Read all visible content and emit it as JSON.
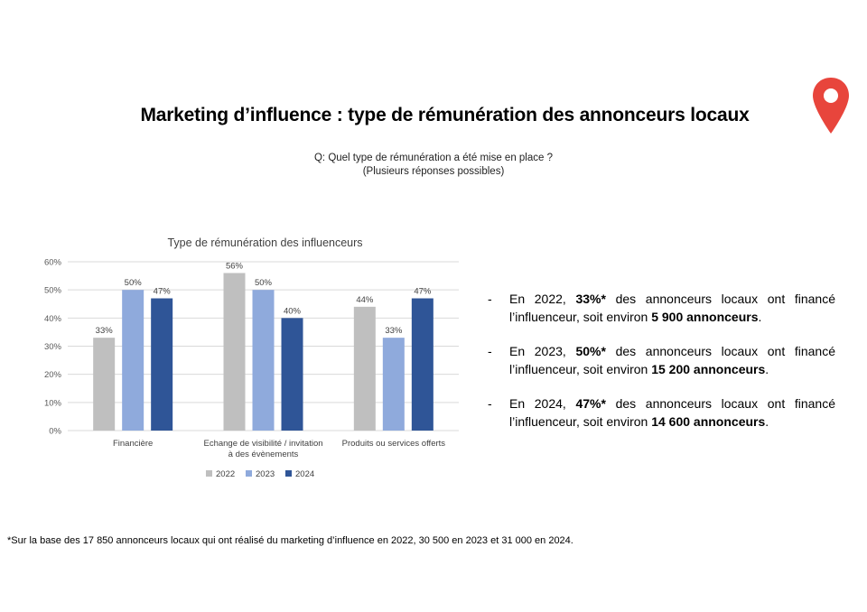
{
  "page": {
    "title": "Marketing d’influence : type de rémunération des annonceurs locaux",
    "question_line1": "Q: Quel type de rémunération a été mise en place ?",
    "question_line2": "(Plusieurs réponses possibles)",
    "pin_icon": "location-pin-icon",
    "pin_color": "#e8453c",
    "footnote": "*Sur la base des 17 850 annonceurs locaux qui ont réalisé du marketing d’influence en 2022, 30 500 en 2023 et 31 000 en 2024."
  },
  "bullets": [
    {
      "pre": "En 2022, ",
      "bold1": "33%*",
      "mid": " des annonceurs locaux ont financé l’influenceur, soit environ ",
      "bold2": "5 900 annonceurs",
      "post": "."
    },
    {
      "pre": "En 2023, ",
      "bold1": "50%*",
      "mid": " des annonceurs locaux ont financé l’influenceur, soit environ ",
      "bold2": "15 200 annonceurs",
      "post": "."
    },
    {
      "pre": "En 2024, ",
      "bold1": "47%*",
      "mid": " des annonceurs locaux ont financé l’influenceur, soit environ ",
      "bold2": "14 600 annonceurs",
      "post": "."
    }
  ],
  "chart_data": {
    "type": "bar",
    "title": "Type de rémunération des influenceurs",
    "categories": [
      [
        "Financière"
      ],
      [
        "Echange de visibilité / invitation",
        "à des évènements"
      ],
      [
        "Produits ou services offerts"
      ]
    ],
    "series": [
      {
        "name": "2022",
        "color": "#bfbfbf",
        "values": [
          33,
          56,
          44
        ]
      },
      {
        "name": "2023",
        "color": "#8faadc",
        "values": [
          50,
          50,
          33
        ]
      },
      {
        "name": "2024",
        "color": "#2f5597",
        "values": [
          47,
          40,
          47
        ]
      }
    ],
    "ylim": [
      0,
      60
    ],
    "yticks": [
      0,
      10,
      20,
      30,
      40,
      50,
      60
    ],
    "ytick_suffix": "%",
    "data_label_suffix": "%",
    "grid": true,
    "legend": "bottom"
  }
}
